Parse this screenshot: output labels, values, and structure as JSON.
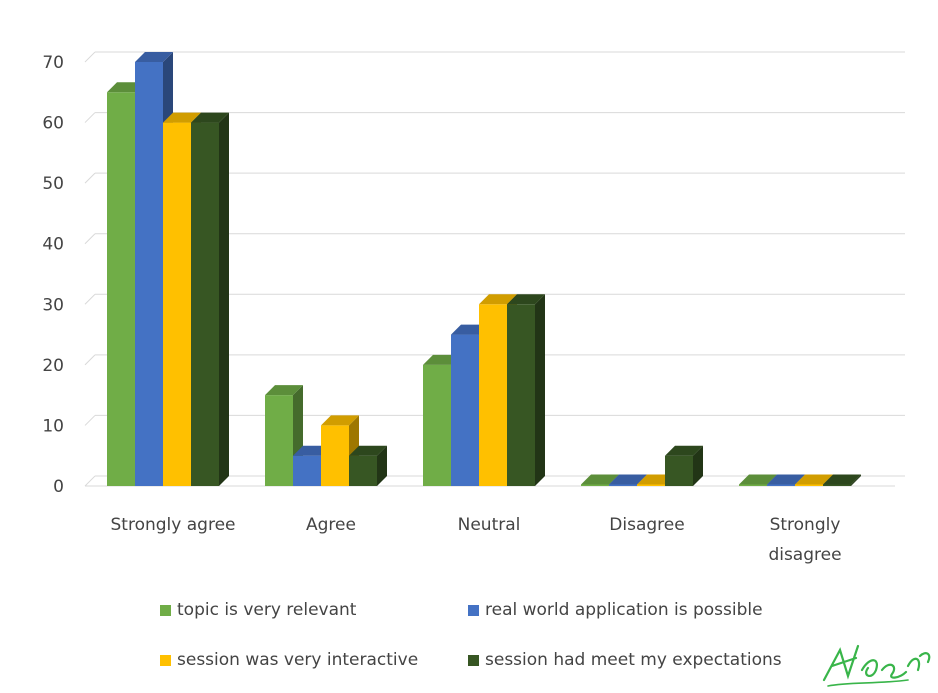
{
  "chart_data": {
    "type": "bar",
    "title": "",
    "xlabel": "",
    "ylabel": "",
    "ylim": [
      0,
      70
    ],
    "yticks": [
      0,
      10,
      20,
      30,
      40,
      50,
      60,
      70
    ],
    "grid": true,
    "legend_position": "bottom",
    "categories": [
      "Strongly agree",
      "Agree",
      "Neutral",
      "Disagree",
      "Strongly disagree"
    ],
    "category_lines": [
      [
        "Strongly agree"
      ],
      [
        "Agree"
      ],
      [
        "Neutral"
      ],
      [
        "Disagree"
      ],
      [
        "Strongly",
        "disagree"
      ]
    ],
    "series": [
      {
        "name": "topic is very relevant",
        "color": "#70ad47",
        "values": [
          65,
          15,
          20,
          0,
          0
        ]
      },
      {
        "name": "real world application is possible",
        "color": "#4472c4",
        "values": [
          70,
          5,
          25,
          0,
          0
        ]
      },
      {
        "name": "session was very interactive",
        "color": "#ffc000",
        "values": [
          60,
          10,
          30,
          0,
          0
        ]
      },
      {
        "name": "session had meet my expectations",
        "color": "#375623",
        "values": [
          60,
          5,
          30,
          5,
          0
        ]
      }
    ]
  }
}
